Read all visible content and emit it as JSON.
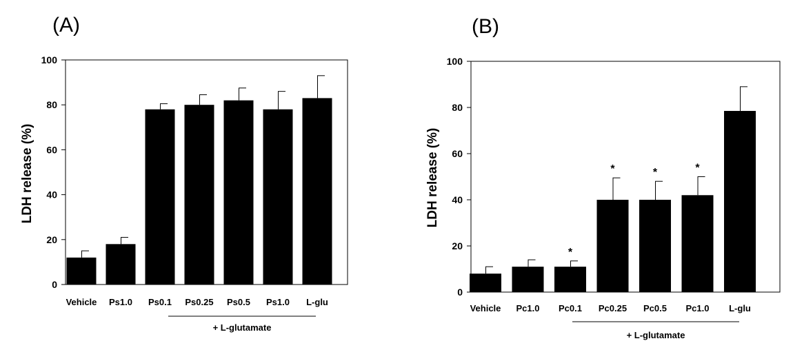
{
  "chart_data": [
    {
      "type": "bar",
      "panel_label": "(A)",
      "ylabel": "LDH release (%)",
      "ylim": [
        0,
        100
      ],
      "yticks": [
        "0",
        "20",
        "40",
        "60",
        "80",
        "100"
      ],
      "categories": [
        "Vehicle",
        "Ps1.0",
        "Ps0.1",
        "Ps0.25",
        "Ps0.5",
        "Ps1.0",
        "L-glu"
      ],
      "values": [
        12,
        18,
        78,
        80,
        82,
        78,
        83
      ],
      "errors": [
        3,
        3,
        2.5,
        4.5,
        5.5,
        8,
        10
      ],
      "significant": [
        false,
        false,
        false,
        false,
        false,
        false,
        false
      ],
      "bar_color": "#000000",
      "group_label": "+ L-glutamate",
      "group_range": [
        2,
        5
      ]
    },
    {
      "type": "bar",
      "panel_label": "(B)",
      "ylabel": "LDH release (%)",
      "ylim": [
        0,
        100
      ],
      "yticks": [
        "0",
        "20",
        "40",
        "60",
        "80",
        "100"
      ],
      "categories": [
        "Vehicle",
        "Pc1.0",
        "Pc0.1",
        "Pc0.25",
        "Pc0.5",
        "Pc1.0",
        "L-glu"
      ],
      "values": [
        8,
        11,
        11,
        40,
        40,
        42,
        78.5
      ],
      "errors": [
        3,
        3,
        2.5,
        9.5,
        8,
        8,
        10.5
      ],
      "significant": [
        false,
        false,
        true,
        true,
        true,
        true,
        false
      ],
      "significance_marker": "*",
      "bar_color": "#000000",
      "group_label": "+ L-glutamate",
      "group_range": [
        2,
        5
      ]
    }
  ]
}
